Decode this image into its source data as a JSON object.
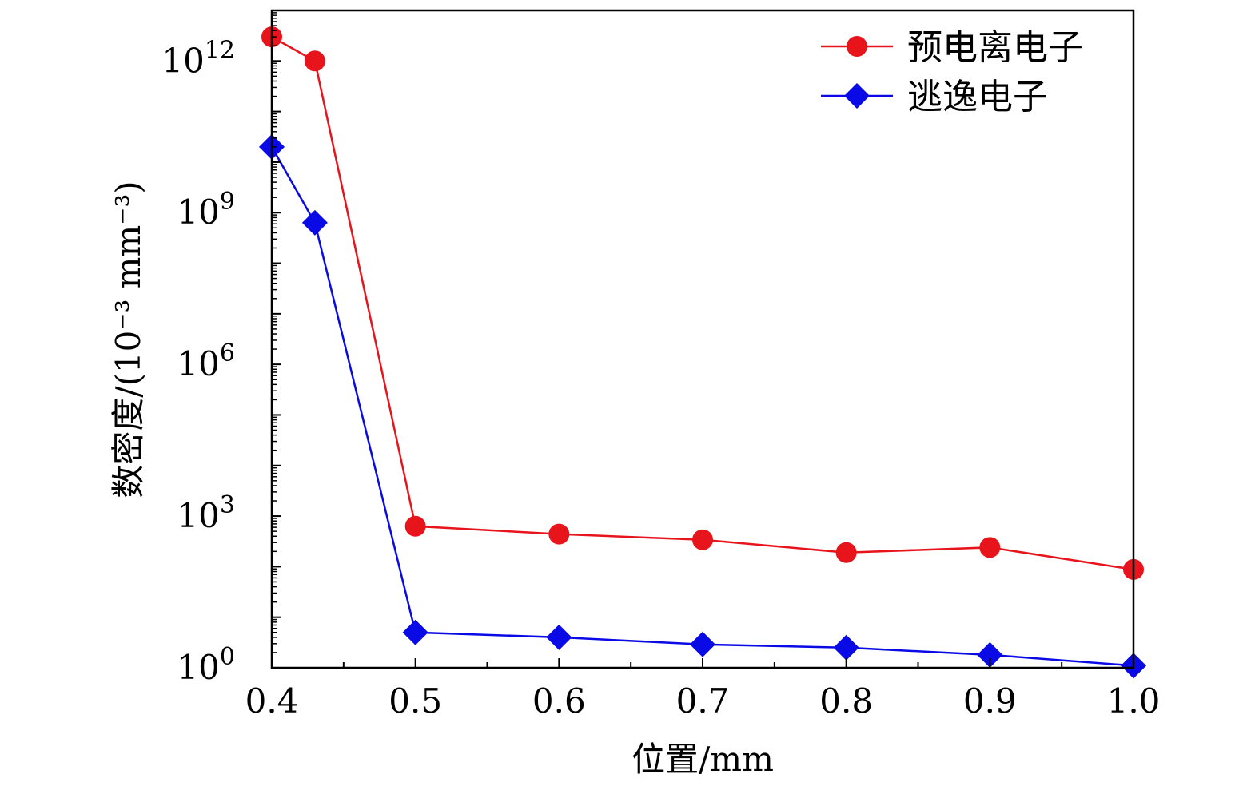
{
  "chart_data": {
    "type": "line",
    "title": "",
    "xlabel": "位置/mm",
    "ylabel": "数密度/(10⁻³ mm⁻³)",
    "xlim": [
      0.4,
      1.0
    ],
    "ylim_log10": [
      0,
      13
    ],
    "yscale": "log",
    "x_ticks": [
      "0.4",
      "0.5",
      "0.6",
      "0.7",
      "0.8",
      "0.9",
      "1.0"
    ],
    "y_ticks": [
      {
        "base": "10",
        "exp": "0"
      },
      {
        "base": "10",
        "exp": "3"
      },
      {
        "base": "10",
        "exp": "6"
      },
      {
        "base": "10",
        "exp": "9"
      },
      {
        "base": "10",
        "exp": "12"
      }
    ],
    "grid": false,
    "legend_position": "top-right",
    "series": [
      {
        "name": "预电离电子",
        "color": "#e8141c",
        "marker": "circle",
        "x": [
          0.4,
          0.43,
          0.5,
          0.6,
          0.7,
          0.8,
          0.9,
          1.0
        ],
        "y": [
          3000000000000.0,
          1000000000000.0,
          630.0,
          440.0,
          340.0,
          190.0,
          240.0,
          88.0
        ]
      },
      {
        "name": "逃逸电子",
        "color": "#0a0ae6",
        "marker": "diamond",
        "x": [
          0.4,
          0.43,
          0.5,
          0.6,
          0.7,
          0.8,
          0.9,
          1.0
        ],
        "y": [
          20000000000.0,
          630000000.0,
          5.0,
          4.0,
          2.9,
          2.5,
          1.8,
          1.1
        ]
      }
    ]
  }
}
